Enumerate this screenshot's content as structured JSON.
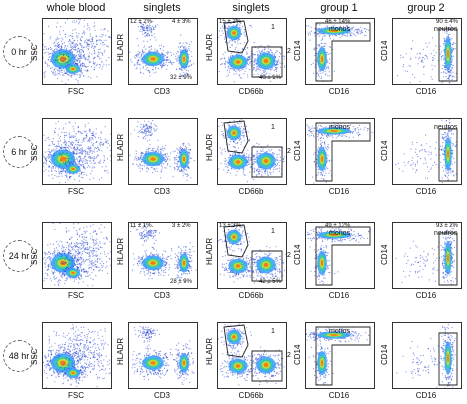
{
  "columns": [
    "whole blood",
    "singlets",
    "singlets",
    "group 1",
    "group 2"
  ],
  "rows": [
    {
      "time": "0 hr",
      "axes": [
        [
          "FSC",
          "SSC"
        ],
        [
          "CD3",
          "HLADR"
        ],
        [
          "CD66b",
          "HLADR"
        ],
        [
          "CD16",
          "CD14"
        ],
        [
          "CD16",
          "CD14"
        ]
      ],
      "stats": {
        "b_tl": "12 ± 2%",
        "b_tr": "4 ± 3%",
        "b_br": "32 ± 9%",
        "c_tl": "15 ± 2%",
        "c_br": "40 ± 1%",
        "d_top": "46 ± 14%",
        "e_top": "90 ± 4%"
      },
      "pops": {
        "d": "monos",
        "e": "neutros"
      },
      "gates": {
        "g1": "1",
        "g2": "2"
      }
    },
    {
      "time": "6 hr",
      "axes": [
        [
          "FSC",
          "SSC"
        ],
        [
          "CD3",
          "HLADR"
        ],
        [
          "CD66b",
          "HLADR"
        ],
        [
          "CD16",
          "CD14"
        ],
        [
          "CD16",
          "CD14"
        ]
      ],
      "stats": {},
      "pops": {
        "d": "monos",
        "e": "neutros"
      },
      "gates": {
        "g1": "1",
        "g2": "2"
      }
    },
    {
      "time": "24 hr",
      "axes": [
        [
          "FSC",
          "SSC"
        ],
        [
          "CD3",
          "HLADR"
        ],
        [
          "CD66b",
          "HLADR"
        ],
        [
          "CD16",
          "CD14"
        ],
        [
          "CD16",
          "CD14"
        ]
      ],
      "stats": {
        "b_tl": "11 ± 1%",
        "b_tr": "3 ± 2%",
        "b_br": "28 ± 9%",
        "c_tl": "13 ± 3%",
        "c_br": "42 ± 5%",
        "d_top": "49 ± 12%",
        "e_top": "93 ± 2%"
      },
      "pops": {
        "d": "monos",
        "e": "neutros"
      },
      "gates": {
        "g1": "1",
        "g2": "2"
      }
    },
    {
      "time": "48 hr",
      "axes": [
        [
          "FSC",
          "SSC"
        ],
        [
          "CD3",
          "HLADR"
        ],
        [
          "CD66b",
          "HLADR"
        ],
        [
          "CD16",
          "CD14"
        ],
        [
          "CD16",
          "CD14"
        ]
      ],
      "stats": {},
      "pops": {
        "d": "monos"
      },
      "gates": {
        "g1": "1",
        "g2": "2"
      }
    }
  ]
}
